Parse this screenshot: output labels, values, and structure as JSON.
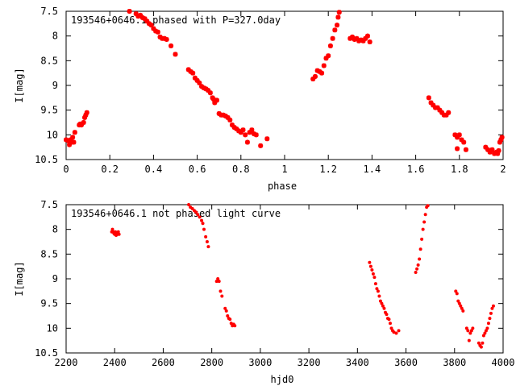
{
  "chart_data": [
    {
      "type": "scatter",
      "title": "193546+0646.1 phased with P=327.0day",
      "xlabel": "phase",
      "ylabel": "I[mag]",
      "xlim": [
        0,
        2
      ],
      "ylim": [
        7.5,
        10.5
      ],
      "y_inverted": true,
      "grid": false,
      "xticks": [
        "0",
        "0.2",
        "0.4",
        "0.6",
        "0.8",
        "1",
        "1.2",
        "1.4",
        "1.6",
        "1.8",
        "2"
      ],
      "yticks": [
        "7.5",
        "8",
        "8.5",
        "9",
        "9.5",
        "10",
        "10.5"
      ],
      "marker_color": "#ff0000",
      "marker": "star",
      "series": [
        {
          "points": [
            [
              0.0,
              10.1
            ],
            [
              0.01,
              10.12
            ],
            [
              0.015,
              10.2
            ],
            [
              0.02,
              10.1
            ],
            [
              0.025,
              10.15
            ],
            [
              0.03,
              10.05
            ],
            [
              0.035,
              10.15
            ],
            [
              0.04,
              9.95
            ],
            [
              0.06,
              9.8
            ],
            [
              0.065,
              9.78
            ],
            [
              0.07,
              9.8
            ],
            [
              0.08,
              9.75
            ],
            [
              0.085,
              9.65
            ],
            [
              0.09,
              9.6
            ],
            [
              0.095,
              9.55
            ],
            [
              0.29,
              7.5
            ],
            [
              0.32,
              7.55
            ],
            [
              0.33,
              7.6
            ],
            [
              0.34,
              7.58
            ],
            [
              0.35,
              7.63
            ],
            [
              0.36,
              7.65
            ],
            [
              0.37,
              7.7
            ],
            [
              0.38,
              7.75
            ],
            [
              0.39,
              7.78
            ],
            [
              0.4,
              7.85
            ],
            [
              0.41,
              7.9
            ],
            [
              0.42,
              7.92
            ],
            [
              0.43,
              8.02
            ],
            [
              0.44,
              8.05
            ],
            [
              0.45,
              8.05
            ],
            [
              0.46,
              8.07
            ],
            [
              0.48,
              8.2
            ],
            [
              0.5,
              8.37
            ],
            [
              0.56,
              8.68
            ],
            [
              0.57,
              8.72
            ],
            [
              0.58,
              8.75
            ],
            [
              0.59,
              8.85
            ],
            [
              0.6,
              8.9
            ],
            [
              0.61,
              8.95
            ],
            [
              0.62,
              9.02
            ],
            [
              0.63,
              9.05
            ],
            [
              0.64,
              9.07
            ],
            [
              0.65,
              9.1
            ],
            [
              0.66,
              9.15
            ],
            [
              0.67,
              9.25
            ],
            [
              0.675,
              9.28
            ],
            [
              0.68,
              9.35
            ],
            [
              0.69,
              9.3
            ],
            [
              0.7,
              9.57
            ],
            [
              0.71,
              9.6
            ],
            [
              0.72,
              9.6
            ],
            [
              0.73,
              9.62
            ],
            [
              0.74,
              9.65
            ],
            [
              0.75,
              9.7
            ],
            [
              0.76,
              9.8
            ],
            [
              0.77,
              9.85
            ],
            [
              0.78,
              9.88
            ],
            [
              0.79,
              9.92
            ],
            [
              0.8,
              9.95
            ],
            [
              0.81,
              9.9
            ],
            [
              0.82,
              10.0
            ],
            [
              0.83,
              10.15
            ],
            [
              0.84,
              9.95
            ],
            [
              0.85,
              9.9
            ],
            [
              0.86,
              9.98
            ],
            [
              0.87,
              10.0
            ],
            [
              0.89,
              10.22
            ],
            [
              0.92,
              10.08
            ],
            [
              1.13,
              8.87
            ],
            [
              1.14,
              8.82
            ],
            [
              1.15,
              8.7
            ],
            [
              1.16,
              8.72
            ],
            [
              1.17,
              8.75
            ],
            [
              1.18,
              8.6
            ],
            [
              1.19,
              8.45
            ],
            [
              1.2,
              8.4
            ],
            [
              1.21,
              8.2
            ],
            [
              1.22,
              8.05
            ],
            [
              1.23,
              7.88
            ],
            [
              1.24,
              7.78
            ],
            [
              1.245,
              7.62
            ],
            [
              1.25,
              7.52
            ],
            [
              1.3,
              8.05
            ],
            [
              1.31,
              8.02
            ],
            [
              1.32,
              8.07
            ],
            [
              1.33,
              8.05
            ],
            [
              1.34,
              8.1
            ],
            [
              1.35,
              8.08
            ],
            [
              1.36,
              8.1
            ],
            [
              1.37,
              8.05
            ],
            [
              1.38,
              8.0
            ],
            [
              1.39,
              8.12
            ],
            [
              1.66,
              9.25
            ],
            [
              1.67,
              9.35
            ],
            [
              1.68,
              9.4
            ],
            [
              1.69,
              9.45
            ],
            [
              1.7,
              9.45
            ],
            [
              1.71,
              9.5
            ],
            [
              1.72,
              9.55
            ],
            [
              1.73,
              9.6
            ],
            [
              1.74,
              9.6
            ],
            [
              1.75,
              9.55
            ],
            [
              1.78,
              10.0
            ],
            [
              1.79,
              10.05
            ],
            [
              1.79,
              10.28
            ],
            [
              1.8,
              10.0
            ],
            [
              1.81,
              10.1
            ],
            [
              1.82,
              10.15
            ],
            [
              1.83,
              10.3
            ],
            [
              1.92,
              10.25
            ],
            [
              1.93,
              10.3
            ],
            [
              1.94,
              10.35
            ],
            [
              1.95,
              10.3
            ],
            [
              1.96,
              10.38
            ],
            [
              1.97,
              10.35
            ],
            [
              1.975,
              10.38
            ],
            [
              1.98,
              10.32
            ],
            [
              1.985,
              10.15
            ],
            [
              1.99,
              10.1
            ],
            [
              1.995,
              10.05
            ]
          ]
        }
      ]
    },
    {
      "type": "scatter",
      "title": "193546+0646.1 not phased light curve",
      "xlabel": "hjd0",
      "ylabel": "I[mag]",
      "xlim": [
        2200,
        4000
      ],
      "ylim": [
        7.5,
        10.5
      ],
      "y_inverted": true,
      "grid": false,
      "xticks": [
        "2200",
        "2400",
        "2600",
        "2800",
        "3000",
        "3200",
        "3400",
        "3600",
        "3800",
        "4000"
      ],
      "yticks": [
        "7.5",
        "8",
        "8.5",
        "9",
        "9.5",
        "10",
        "10.5"
      ],
      "marker_color": "#ff0000",
      "marker": "dot",
      "series": [
        {
          "points": [
            [
              2388,
              8.05
            ],
            [
              2391,
              8.0
            ],
            [
              2394,
              8.05
            ],
            [
              2397,
              8.08
            ],
            [
              2400,
              8.1
            ],
            [
              2403,
              8.05
            ],
            [
              2406,
              8.12
            ],
            [
              2409,
              8.08
            ],
            [
              2412,
              8.1
            ],
            [
              2415,
              8.05
            ],
            [
              2418,
              8.1
            ],
            [
              2705,
              7.5
            ],
            [
              2712,
              7.55
            ],
            [
              2720,
              7.58
            ],
            [
              2728,
              7.62
            ],
            [
              2735,
              7.65
            ],
            [
              2742,
              7.7
            ],
            [
              2750,
              7.75
            ],
            [
              2758,
              7.82
            ],
            [
              2763,
              7.88
            ],
            [
              2768,
              8.0
            ],
            [
              2775,
              8.15
            ],
            [
              2781,
              8.25
            ],
            [
              2786,
              8.35
            ],
            [
              2820,
              9.05
            ],
            [
              2825,
              9.0
            ],
            [
              2830,
              9.05
            ],
            [
              2836,
              9.25
            ],
            [
              2842,
              9.35
            ],
            [
              2855,
              9.6
            ],
            [
              2860,
              9.65
            ],
            [
              2865,
              9.75
            ],
            [
              2870,
              9.8
            ],
            [
              2875,
              9.82
            ],
            [
              2880,
              9.9
            ],
            [
              2885,
              9.95
            ],
            [
              2890,
              9.92
            ],
            [
              2895,
              9.95
            ],
            [
              3450,
              8.67
            ],
            [
              3455,
              8.75
            ],
            [
              3460,
              8.82
            ],
            [
              3465,
              8.9
            ],
            [
              3470,
              8.97
            ],
            [
              3475,
              9.1
            ],
            [
              3480,
              9.2
            ],
            [
              3485,
              9.25
            ],
            [
              3490,
              9.35
            ],
            [
              3495,
              9.45
            ],
            [
              3500,
              9.5
            ],
            [
              3505,
              9.55
            ],
            [
              3510,
              9.6
            ],
            [
              3515,
              9.68
            ],
            [
              3520,
              9.72
            ],
            [
              3525,
              9.8
            ],
            [
              3530,
              9.82
            ],
            [
              3535,
              9.9
            ],
            [
              3540,
              10.0
            ],
            [
              3545,
              10.05
            ],
            [
              3550,
              10.08
            ],
            [
              3560,
              10.1
            ],
            [
              3570,
              10.05
            ],
            [
              3640,
              8.87
            ],
            [
              3645,
              8.8
            ],
            [
              3650,
              8.72
            ],
            [
              3655,
              8.6
            ],
            [
              3660,
              8.4
            ],
            [
              3665,
              8.2
            ],
            [
              3670,
              8.0
            ],
            [
              3675,
              7.85
            ],
            [
              3680,
              7.7
            ],
            [
              3685,
              7.55
            ],
            [
              3690,
              7.52
            ],
            [
              3805,
              9.25
            ],
            [
              3810,
              9.3
            ],
            [
              3815,
              9.45
            ],
            [
              3820,
              9.5
            ],
            [
              3825,
              9.55
            ],
            [
              3830,
              9.6
            ],
            [
              3835,
              9.65
            ],
            [
              3850,
              10.0
            ],
            [
              3855,
              10.05
            ],
            [
              3860,
              10.25
            ],
            [
              3865,
              10.1
            ],
            [
              3870,
              10.05
            ],
            [
              3875,
              10.0
            ],
            [
              3900,
              10.3
            ],
            [
              3905,
              10.35
            ],
            [
              3910,
              10.38
            ],
            [
              3915,
              10.3
            ],
            [
              3920,
              10.15
            ],
            [
              3925,
              10.1
            ],
            [
              3930,
              10.05
            ],
            [
              3935,
              10.0
            ],
            [
              3940,
              9.9
            ],
            [
              3945,
              9.8
            ],
            [
              3950,
              9.7
            ],
            [
              3955,
              9.6
            ],
            [
              3960,
              9.55
            ]
          ]
        }
      ]
    }
  ]
}
